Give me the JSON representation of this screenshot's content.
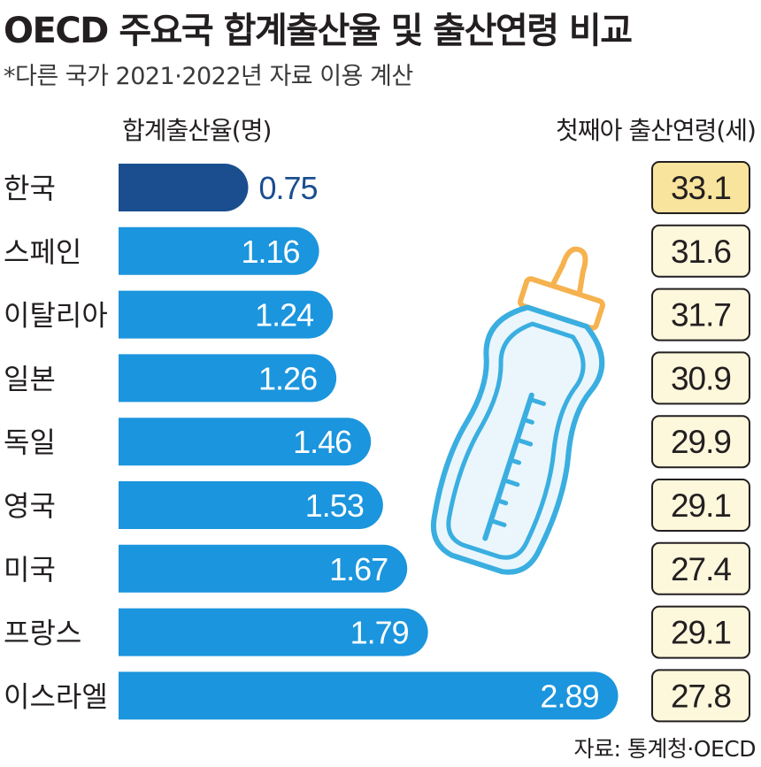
{
  "title": "OECD 주요국 합계출산율 및 출산연령 비교",
  "subtitle": "*다른 국가 2021·2022년 자료 이용 계산",
  "left_column_label": "합계출산율(명)",
  "right_column_label": "첫째아 출산연령(세)",
  "source": "자료: 통계청·OECD",
  "colors": {
    "highlight_bar": "#1a4e8f",
    "bar": "#1b95dd",
    "highlight_box": "#f8e49c",
    "box": "#fdf7dc",
    "box_border": "#231f20",
    "bottle_outline": "#3aaee0",
    "bottle_cap": "#f5b24e"
  },
  "icons": [
    "baby-bottle-icon"
  ],
  "chart_data": {
    "type": "bar",
    "orientation": "horizontal",
    "categories": [
      "한국",
      "스페인",
      "이탈리아",
      "일본",
      "독일",
      "영국",
      "미국",
      "프랑스",
      "이스라엘"
    ],
    "series": [
      {
        "name": "합계출산율(명)",
        "values": [
          0.75,
          1.16,
          1.24,
          1.26,
          1.46,
          1.53,
          1.67,
          1.79,
          2.89
        ],
        "labels": [
          "0.75",
          "1.16",
          "1.24",
          "1.26",
          "1.46",
          "1.53",
          "1.67",
          "1.79",
          "2.89"
        ]
      },
      {
        "name": "첫째아 출산연령(세)",
        "values": [
          33.1,
          31.6,
          31.7,
          30.9,
          29.9,
          29.1,
          27.4,
          29.1,
          27.8
        ],
        "labels": [
          "33.1",
          "31.6",
          "31.7",
          "30.9",
          "29.9",
          "29.1",
          "27.4",
          "29.1",
          "27.8"
        ]
      }
    ],
    "highlight_category": "한국",
    "grid": false
  }
}
